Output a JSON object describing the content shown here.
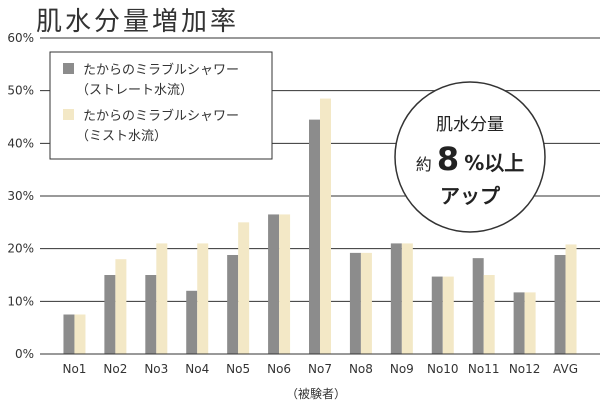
{
  "chart_data": {
    "type": "bar",
    "title": "肌水分量増加率",
    "xlabel": "（被験者）",
    "ylabel": "",
    "ylim": [
      0,
      60
    ],
    "yticks": [
      0,
      10,
      20,
      30,
      40,
      50,
      60
    ],
    "ytick_labels": [
      "0%",
      "10%",
      "20%",
      "30%",
      "40%",
      "50%",
      "60%"
    ],
    "grid": true,
    "legend_position": "top-left",
    "categories": [
      "No1",
      "No2",
      "No3",
      "No4",
      "No5",
      "No6",
      "No7",
      "No8",
      "No9",
      "No10",
      "No11",
      "No12",
      "AVG"
    ],
    "series": [
      {
        "name_line1": "たからのミラブルシャワー",
        "name_line2": "（ストレート水流）",
        "color": "#8c8c8c",
        "values": [
          7.5,
          15.0,
          15.0,
          12.0,
          18.8,
          26.5,
          44.5,
          19.2,
          21.0,
          14.7,
          18.2,
          11.7,
          18.8
        ]
      },
      {
        "name_line1": "たからのミラブルシャワー",
        "name_line2": "（ミスト水流）",
        "color": "#f3e8c6",
        "values": [
          7.5,
          18.0,
          21.0,
          21.0,
          25.0,
          26.5,
          48.5,
          19.2,
          21.0,
          14.7,
          15.0,
          11.7,
          20.8
        ]
      }
    ],
    "annotation": {
      "line1": "肌水分量",
      "line2_prefix": "約",
      "line2_number": "8",
      "line2_suffix": "%以上",
      "line3": "アップ"
    }
  }
}
